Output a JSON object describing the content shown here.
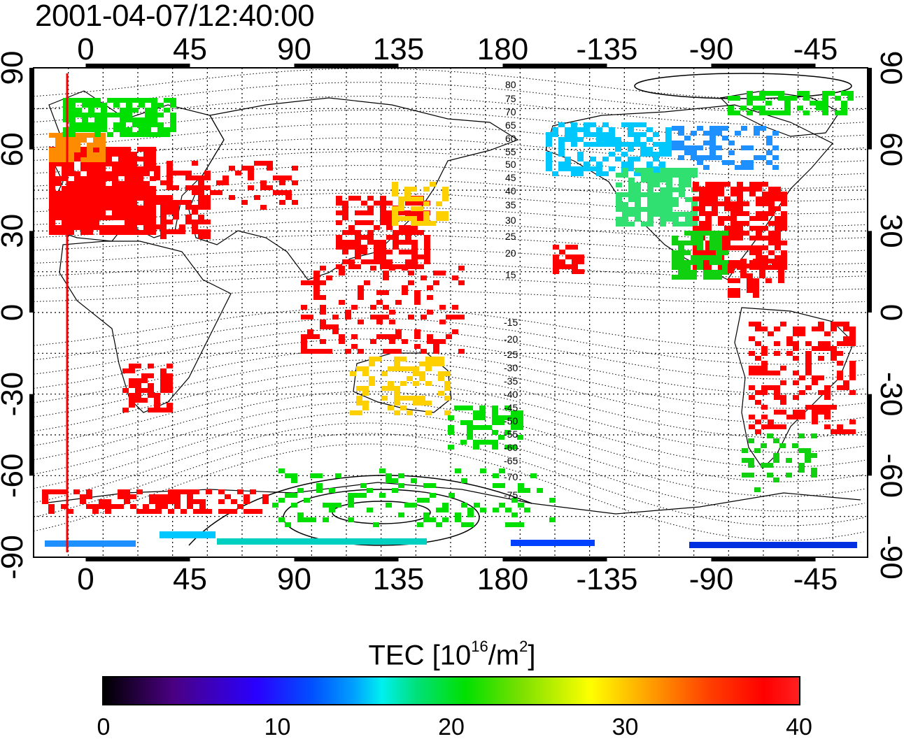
{
  "title": "2001-04-07/12:40:00",
  "map": {
    "x_ticks": [
      "0",
      "45",
      "90",
      "135",
      "180",
      "-135",
      "-90",
      "-45"
    ],
    "y_ticks_left": [
      "90",
      "60",
      "30",
      "0",
      "-30",
      "-60",
      "-90"
    ],
    "y_ticks_right": [
      "90",
      "60",
      "30",
      "0",
      "-30",
      "-60",
      "-90"
    ],
    "contour_labels_north": [
      "80",
      "75",
      "70",
      "65",
      "60",
      "55",
      "50",
      "45",
      "40",
      "35",
      "30",
      "25",
      "20",
      "15"
    ],
    "contour_labels_south": [
      "-15",
      "-20",
      "-25",
      "-30",
      "-35",
      "-40",
      "-45",
      "-50",
      "-55",
      "-60",
      "-65",
      "-70",
      "-75"
    ],
    "accent_line_color": "#ff0000"
  },
  "colorbar": {
    "title_prefix": "TEC  [10",
    "title_sup1": "16",
    "title_mid": "/m",
    "title_sup2": "2",
    "title_suffix": "]",
    "ticks": [
      "0",
      "10",
      "20",
      "30",
      "40"
    ],
    "range": [
      0,
      40
    ]
  }
}
